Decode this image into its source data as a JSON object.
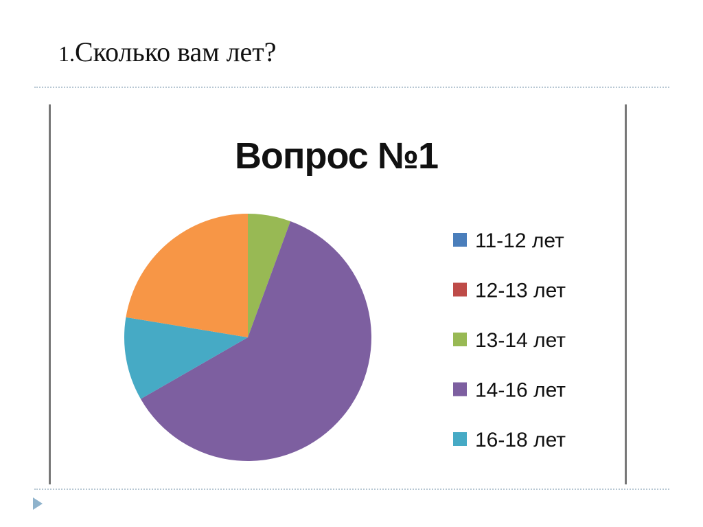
{
  "slide": {
    "title_number": "1.",
    "title_text": "Сколько вам лет?"
  },
  "chart_data": {
    "type": "pie",
    "title": "Вопрос №1",
    "legend_position": "right",
    "start_angle": "12 o'clock, clockwise",
    "categories": [
      "11-12 лет",
      "12-13 лет",
      "13-14 лет",
      "14-16 лет",
      "16-18 лет",
      ""
    ],
    "values": [
      0,
      0,
      5.6,
      61.1,
      10.9,
      22.4
    ],
    "colors": [
      "#4a7ebb",
      "#be4b48",
      "#98b954",
      "#7d5fa0",
      "#46aac5",
      "#f79646"
    ],
    "legend_entries": [
      "11-12 лет",
      "12-13 лет",
      "13-14 лет",
      "14-16 лет",
      "16-18 лет"
    ]
  }
}
